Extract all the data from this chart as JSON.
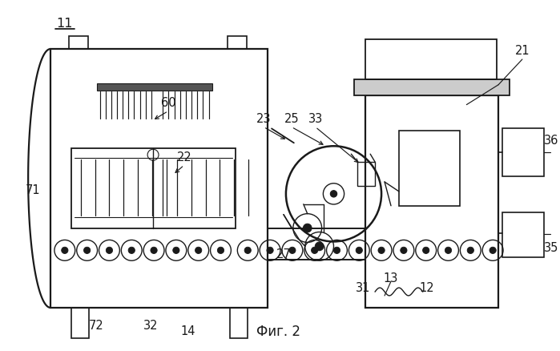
{
  "bg_color": "#ffffff",
  "line_color": "#1a1a1a",
  "fig_label": "Фиг. 2"
}
